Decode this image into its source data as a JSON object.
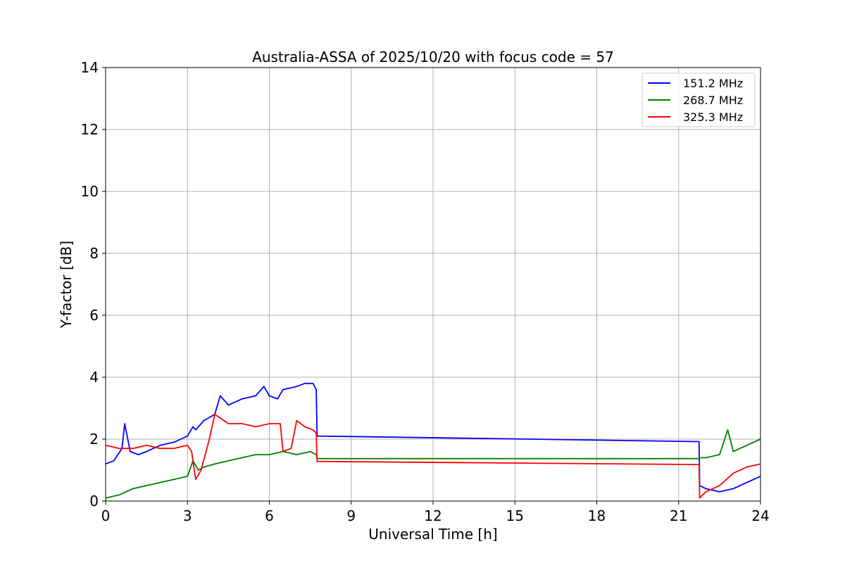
{
  "chart_data": {
    "type": "line",
    "title": "Australia-ASSA of 2025/10/20 with focus code = 57",
    "xlabel": "Universal Time [h]",
    "ylabel": "Y-factor [dB]",
    "xlim": [
      0,
      24
    ],
    "ylim": [
      0,
      14
    ],
    "xticks": [
      0,
      3,
      6,
      9,
      12,
      15,
      18,
      21,
      24
    ],
    "yticks": [
      0,
      2,
      4,
      6,
      8,
      10,
      12,
      14
    ],
    "grid": true,
    "legend_position": "top-right",
    "series": [
      {
        "name": "151.2 MHz",
        "color": "#0000ff",
        "x": [
          0,
          0.3,
          0.6,
          0.7,
          0.9,
          1.2,
          1.5,
          2.0,
          2.5,
          3.0,
          3.2,
          3.3,
          3.6,
          4.0,
          4.2,
          4.5,
          5.0,
          5.5,
          5.8,
          6.0,
          6.3,
          6.5,
          7.0,
          7.3,
          7.6,
          7.72,
          7.75,
          21.75,
          21.77,
          22.0,
          22.5,
          23.0,
          23.5,
          24.0
        ],
        "y": [
          1.2,
          1.3,
          1.7,
          2.5,
          1.6,
          1.5,
          1.6,
          1.8,
          1.9,
          2.1,
          2.4,
          2.3,
          2.6,
          2.8,
          3.4,
          3.1,
          3.3,
          3.4,
          3.7,
          3.4,
          3.3,
          3.6,
          3.7,
          3.8,
          3.8,
          3.6,
          2.1,
          1.92,
          0.5,
          0.4,
          0.3,
          0.4,
          0.6,
          0.8
        ]
      },
      {
        "name": "268.7 MHz",
        "color": "#008000",
        "x": [
          0,
          0.5,
          1.0,
          1.5,
          2.0,
          2.5,
          3.0,
          3.2,
          3.4,
          3.6,
          4.0,
          4.5,
          5.0,
          5.5,
          6.0,
          6.5,
          7.0,
          7.5,
          7.72,
          7.75,
          21.75,
          21.77,
          22.0,
          22.5,
          22.8,
          23.0,
          23.5,
          24.0
        ],
        "y": [
          0.1,
          0.2,
          0.4,
          0.5,
          0.6,
          0.7,
          0.8,
          1.3,
          1.0,
          1.1,
          1.2,
          1.3,
          1.4,
          1.5,
          1.5,
          1.6,
          1.5,
          1.6,
          1.5,
          1.37,
          1.37,
          1.4,
          1.4,
          1.5,
          2.3,
          1.6,
          1.8,
          2.0
        ]
      },
      {
        "name": "325.3 MHz",
        "color": "#ff0000",
        "x": [
          0,
          0.5,
          1.0,
          1.5,
          2.0,
          2.5,
          3.0,
          3.15,
          3.3,
          3.5,
          3.8,
          4.0,
          4.5,
          5.0,
          5.5,
          6.0,
          6.4,
          6.5,
          6.8,
          7.0,
          7.3,
          7.6,
          7.72,
          7.75,
          21.75,
          21.77,
          22.0,
          22.5,
          23.0,
          23.5,
          24.0
        ],
        "y": [
          1.8,
          1.7,
          1.7,
          1.8,
          1.7,
          1.7,
          1.8,
          1.6,
          0.7,
          1.0,
          2.0,
          2.8,
          2.5,
          2.5,
          2.4,
          2.5,
          2.5,
          1.6,
          1.7,
          2.6,
          2.4,
          2.3,
          2.2,
          1.28,
          1.18,
          0.1,
          0.3,
          0.5,
          0.9,
          1.1,
          1.2
        ]
      }
    ]
  }
}
